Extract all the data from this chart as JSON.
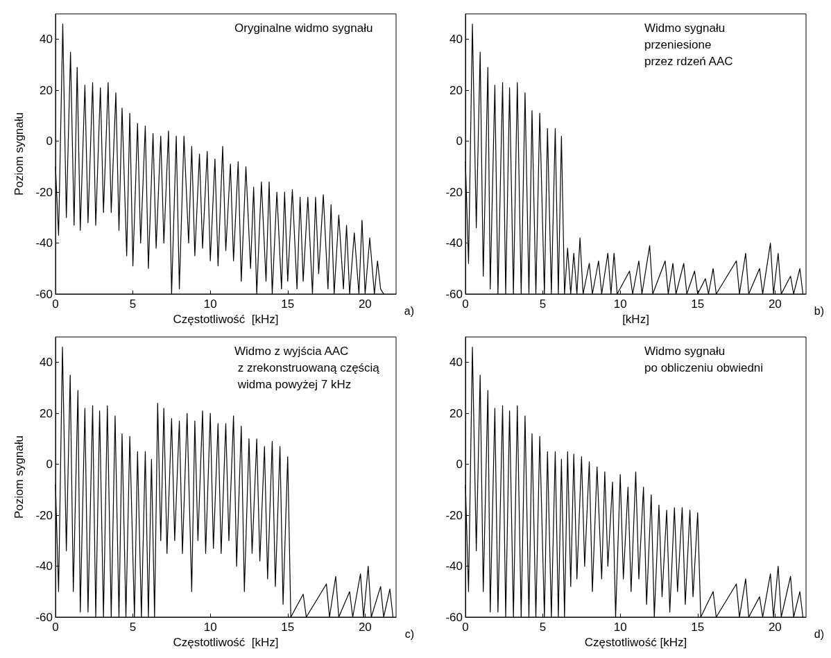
{
  "chart_data": [
    {
      "type": "line",
      "xlabel": "Częstotliwość  [kHz]",
      "ylabel": "Poziom sygnału",
      "annotations": [
        "Oryginalne widmo sygnału",
        "a)"
      ],
      "xlim": [
        0,
        22
      ],
      "ylim": [
        -60,
        50
      ],
      "xticks": [
        0,
        5,
        10,
        15,
        20
      ],
      "yticks": [
        -60,
        -40,
        -20,
        0,
        20,
        40
      ],
      "series": [
        {
          "color": "#000000",
          "x": [
            0,
            0.2,
            0.47,
            0.7,
            0.97,
            1.2,
            1.4,
            1.6,
            1.9,
            2.1,
            2.4,
            2.6,
            2.9,
            3.1,
            3.4,
            3.6,
            3.9,
            4.1,
            4.3,
            4.6,
            4.8,
            5.0,
            5.3,
            5.5,
            5.8,
            6.0,
            6.3,
            6.5,
            6.8,
            7.0,
            7.3,
            7.5,
            7.8,
            8.0,
            8.3,
            8.6,
            8.8,
            9.0,
            9.3,
            9.5,
            9.8,
            10.0,
            10.3,
            10.5,
            10.8,
            11.0,
            11.3,
            11.5,
            11.8,
            12.0,
            12.3,
            12.6,
            12.8,
            13.0,
            13.3,
            13.6,
            13.8,
            14.0,
            14.3,
            14.6,
            14.8,
            15.0,
            15.3,
            15.6,
            15.8,
            16.0,
            16.3,
            16.6,
            16.8,
            17.0,
            17.3,
            17.6,
            17.8,
            18.0,
            18.3,
            18.6,
            18.8,
            19.0,
            19.3,
            19.6,
            19.8,
            20.0,
            20.3,
            20.6,
            20.8,
            21.0,
            21.2
          ],
          "values": [
            -10,
            -37,
            46,
            -30,
            35,
            -33,
            29,
            -35,
            22,
            -32,
            23,
            -33,
            21,
            -28,
            23,
            -28,
            19,
            -35,
            13,
            -45,
            11,
            -49,
            7,
            -40,
            6,
            -50,
            3,
            -42,
            2,
            -40,
            4,
            -60,
            2,
            -58,
            2,
            -40,
            -2,
            -45,
            -5,
            -42,
            -4,
            -47,
            -7,
            -49,
            -2,
            -43,
            -9,
            -47,
            -8,
            -55,
            -10,
            -50,
            -18,
            -60,
            -16,
            -55,
            -16,
            -60,
            -20,
            -58,
            -20,
            -55,
            -19,
            -58,
            -22,
            -55,
            -22,
            -60,
            -22,
            -52,
            -21,
            -58,
            -25,
            -60,
            -29,
            -58,
            -33,
            -60,
            -36,
            -60,
            -31,
            -60,
            -38,
            -60,
            -47,
            -58,
            -60
          ]
        }
      ]
    },
    {
      "type": "line",
      "xlabel": "[kHz]",
      "annotations": [
        "Widmo sygnału\nprzeniesione\nprzez rdzeń AAC",
        "b)"
      ],
      "xlim": [
        0,
        22
      ],
      "ylim": [
        -60,
        50
      ],
      "xticks": [
        0,
        5,
        10,
        15,
        20
      ],
      "yticks": [
        -60,
        -40,
        -20,
        0,
        20,
        40
      ],
      "series": [
        {
          "color": "#000000",
          "x": [
            0,
            0.2,
            0.45,
            0.7,
            0.95,
            1.15,
            1.45,
            1.6,
            1.9,
            2.1,
            2.4,
            2.6,
            2.85,
            3.1,
            3.35,
            3.6,
            3.85,
            4.1,
            4.3,
            4.55,
            4.8,
            5.1,
            5.3,
            5.55,
            5.8,
            6.0,
            6.2,
            6.4,
            6.6,
            6.8,
            7.0,
            7.2,
            7.4,
            7.6,
            8.0,
            8.2,
            8.6,
            8.8,
            9.2,
            9.4,
            9.6,
            9.8,
            10.6,
            10.8,
            11.2,
            11.4,
            11.9,
            12.1,
            12.9,
            13.1,
            13.4,
            13.6,
            14.1,
            14.3,
            14.8,
            15.0,
            15.5,
            15.7,
            16.0,
            16.2,
            17.5,
            17.7,
            18.1,
            18.3,
            19.0,
            19.2,
            19.7,
            19.9,
            20.2,
            20.4,
            21.0,
            21.2,
            21.6,
            21.8
          ],
          "values": [
            -8,
            -48,
            46,
            -34,
            35,
            -53,
            29,
            -58,
            22,
            -60,
            23,
            -60,
            21,
            -60,
            23,
            -60,
            19,
            -60,
            12,
            -60,
            11,
            -60,
            5,
            -60,
            5,
            -60,
            2,
            -60,
            -42,
            -60,
            -44,
            -60,
            -38,
            -60,
            -48,
            -60,
            -47,
            -60,
            -44,
            -60,
            -44,
            -60,
            -51,
            -60,
            -47,
            -60,
            -41,
            -60,
            -47,
            -60,
            -48,
            -60,
            -48,
            -60,
            -51,
            -60,
            -54,
            -60,
            -50,
            -60,
            -47,
            -60,
            -44,
            -60,
            -50,
            -60,
            -40,
            -60,
            -44,
            -60,
            -53,
            -60,
            -50,
            -60
          ]
        }
      ]
    },
    {
      "type": "line",
      "xlabel": "Częstotliwość  [kHz]",
      "ylabel": "Poziom sygnału",
      "annotations": [
        "Widmo z wyjścia AAC\n z zrekonstruowaną częścią\n widma powyżej 7 kHz",
        "c)"
      ],
      "xlim": [
        0,
        22
      ],
      "ylim": [
        -60,
        50
      ],
      "xticks": [
        0,
        5,
        10,
        15,
        20
      ],
      "yticks": [
        -60,
        -40,
        -20,
        0,
        20,
        40
      ],
      "series": [
        {
          "color": "#000000",
          "x": [
            0,
            0.2,
            0.45,
            0.7,
            0.95,
            1.15,
            1.45,
            1.6,
            1.9,
            2.1,
            2.4,
            2.6,
            2.85,
            3.1,
            3.35,
            3.6,
            3.85,
            4.1,
            4.3,
            4.55,
            4.8,
            5.1,
            5.3,
            5.55,
            5.8,
            6.0,
            6.2,
            6.4,
            6.6,
            6.8,
            7.0,
            7.2,
            7.5,
            7.7,
            8.0,
            8.2,
            8.5,
            8.8,
            9.0,
            9.2,
            9.5,
            9.7,
            10.0,
            10.2,
            10.5,
            10.7,
            11.0,
            11.2,
            11.5,
            11.7,
            12.0,
            12.2,
            12.5,
            12.7,
            13.0,
            13.2,
            13.5,
            13.7,
            14.0,
            14.2,
            14.5,
            14.7,
            15.0,
            15.2,
            16.0,
            16.2,
            17.5,
            17.7,
            18.1,
            18.3,
            19.0,
            19.2,
            19.7,
            19.9,
            20.2,
            20.4,
            21.0,
            21.2,
            21.6,
            21.8
          ],
          "values": [
            -8,
            -50,
            46,
            -34,
            35,
            -50,
            29,
            -58,
            22,
            -58,
            23,
            -60,
            21,
            -60,
            23,
            -60,
            19,
            -60,
            12,
            -60,
            11,
            -60,
            5,
            -60,
            5,
            -60,
            2,
            -60,
            24,
            -30,
            22,
            -35,
            18,
            -30,
            17,
            -35,
            20,
            -50,
            17,
            -30,
            21,
            -35,
            20,
            -33,
            16,
            -35,
            16,
            -30,
            19,
            -40,
            15,
            -50,
            10,
            -35,
            10,
            -38,
            7,
            -45,
            9,
            -48,
            7,
            -55,
            3,
            -60,
            -51,
            -60,
            -47,
            -60,
            -44,
            -60,
            -50,
            -60,
            -43,
            -60,
            -40,
            -60,
            -48,
            -60,
            -49,
            -60
          ]
        }
      ]
    },
    {
      "type": "line",
      "xlabel": "Częstotliwość [kHz]",
      "annotations": [
        "Widmo sygnału\npo obliczeniu obwiedni",
        "d)"
      ],
      "xlim": [
        0,
        22
      ],
      "ylim": [
        -60,
        50
      ],
      "xticks": [
        0,
        5,
        10,
        15,
        20
      ],
      "yticks": [
        -60,
        -40,
        -20,
        0,
        20,
        40
      ],
      "series": [
        {
          "color": "#000000",
          "x": [
            0,
            0.2,
            0.45,
            0.7,
            0.95,
            1.15,
            1.45,
            1.6,
            1.9,
            2.1,
            2.4,
            2.6,
            2.85,
            3.1,
            3.35,
            3.6,
            3.85,
            4.1,
            4.3,
            4.55,
            4.8,
            5.1,
            5.3,
            5.55,
            5.8,
            6.0,
            6.2,
            6.4,
            6.6,
            6.8,
            7.0,
            7.2,
            7.5,
            7.7,
            8.0,
            8.2,
            8.5,
            8.8,
            9.0,
            9.2,
            9.5,
            9.7,
            10.0,
            10.2,
            10.5,
            10.7,
            11.0,
            11.2,
            11.5,
            11.7,
            12.0,
            12.2,
            12.5,
            12.7,
            13.0,
            13.2,
            13.5,
            13.7,
            14.0,
            14.2,
            14.5,
            14.7,
            15.0,
            15.2,
            16.0,
            16.2,
            17.5,
            17.7,
            18.1,
            18.3,
            19.0,
            19.2,
            19.7,
            19.9,
            20.2,
            20.4,
            21.0,
            21.2,
            21.6,
            21.8
          ],
          "values": [
            -8,
            -50,
            46,
            -34,
            35,
            -50,
            29,
            -58,
            22,
            -58,
            23,
            -60,
            21,
            -60,
            23,
            -60,
            19,
            -60,
            12,
            -60,
            11,
            -60,
            5,
            -60,
            5,
            -60,
            2,
            -60,
            5,
            -48,
            4,
            -45,
            3,
            -40,
            1,
            -50,
            -1,
            -45,
            -3,
            -40,
            -7,
            -60,
            -4,
            -45,
            -9,
            -50,
            -3,
            -45,
            -9,
            -55,
            -12,
            -60,
            -16,
            -52,
            -18,
            -58,
            -17,
            -50,
            -17,
            -55,
            -18,
            -52,
            -19,
            -60,
            -50,
            -60,
            -47,
            -60,
            -45,
            -60,
            -52,
            -60,
            -43,
            -60,
            -40,
            -60,
            -44,
            -60,
            -50,
            -60
          ]
        }
      ]
    }
  ]
}
